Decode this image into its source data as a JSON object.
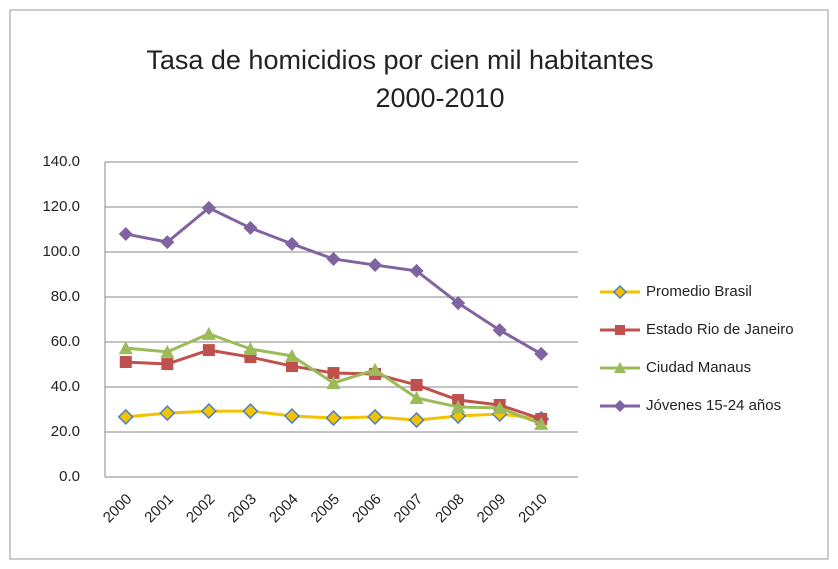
{
  "chart_data": {
    "type": "line",
    "title": [
      "Tasa de homicidios por cien mil habitantes",
      "2000-2010"
    ],
    "categories": [
      "2000",
      "2001",
      "2002",
      "2003",
      "2004",
      "2005",
      "2006",
      "2007",
      "2008",
      "2009",
      "2010"
    ],
    "series": [
      {
        "name": "Promedio Brasil",
        "color": "#f5c200",
        "marker": "diamond",
        "values": [
          26.7,
          28.4,
          29.3,
          29.3,
          27.1,
          26.2,
          26.7,
          25.3,
          27.1,
          28.0,
          25.8
        ]
      },
      {
        "name": "Estado Rio de Janeiro",
        "color": "#c0504d",
        "marker": "square",
        "values": [
          51.1,
          50.2,
          56.4,
          53.3,
          49.3,
          46.2,
          45.8,
          40.9,
          34.2,
          32.0,
          25.8
        ]
      },
      {
        "name": "Ciudad Manaus",
        "color": "#9bbb59",
        "marker": "triangle",
        "values": [
          57.3,
          55.6,
          63.6,
          56.9,
          53.8,
          41.8,
          47.6,
          35.1,
          31.1,
          30.7,
          23.6
        ]
      },
      {
        "name": "Jóvenes 15-24 años",
        "color": "#8064a2",
        "marker": "diamond",
        "values": [
          108.0,
          104.4,
          119.6,
          110.7,
          103.6,
          96.9,
          94.2,
          91.6,
          77.3,
          65.3,
          54.7
        ]
      }
    ],
    "ylim": [
      0,
      140
    ],
    "yticks": [
      {
        "value": 0,
        "label": "0.0"
      },
      {
        "value": 20,
        "label": "20.0"
      },
      {
        "value": 40,
        "label": "40.0"
      },
      {
        "value": 60,
        "label": "60.0"
      },
      {
        "value": 80,
        "label": "80.0"
      },
      {
        "value": 100,
        "label": "100.0"
      },
      {
        "value": 120,
        "label": "120.0"
      },
      {
        "value": 140,
        "label": "140.0"
      }
    ],
    "grid": true,
    "legend": "right"
  }
}
